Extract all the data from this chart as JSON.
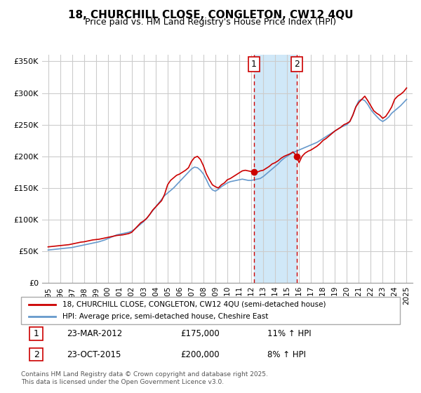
{
  "title": "18, CHURCHILL CLOSE, CONGLETON, CW12 4QU",
  "subtitle": "Price paid vs. HM Land Registry's House Price Index (HPI)",
  "legend_line1": "18, CHURCHILL CLOSE, CONGLETON, CW12 4QU (semi-detached house)",
  "legend_line2": "HPI: Average price, semi-detached house, Cheshire East",
  "footnote": "Contains HM Land Registry data © Crown copyright and database right 2025.\nThis data is licensed under the Open Government Licence v3.0.",
  "annotation1_label": "1",
  "annotation1_date": "23-MAR-2012",
  "annotation1_price": "£175,000",
  "annotation1_hpi": "11% ↑ HPI",
  "annotation2_label": "2",
  "annotation2_date": "23-OCT-2015",
  "annotation2_price": "£200,000",
  "annotation2_hpi": "8% ↑ HPI",
  "marker1_x": 2012.23,
  "marker1_y": 175000,
  "marker2_x": 2015.81,
  "marker2_y": 200000,
  "shaded_x1": 2012.23,
  "shaded_x2": 2015.81,
  "vline1_x": 2012.23,
  "vline2_x": 2015.81,
  "red_line_color": "#cc0000",
  "blue_line_color": "#6699cc",
  "shaded_color": "#d0e8f8",
  "grid_color": "#cccccc",
  "background_color": "#ffffff",
  "ylim": [
    0,
    360000
  ],
  "xlim_start": 1994.5,
  "xlim_end": 2025.5,
  "yticks": [
    0,
    50000,
    100000,
    150000,
    200000,
    250000,
    300000,
    350000
  ],
  "ytick_labels": [
    "£0",
    "£50K",
    "£100K",
    "£150K",
    "£200K",
    "£250K",
    "£300K",
    "£350K"
  ],
  "xticks": [
    1995,
    1996,
    1997,
    1998,
    1999,
    2000,
    2001,
    2002,
    2003,
    2004,
    2005,
    2006,
    2007,
    2008,
    2009,
    2010,
    2011,
    2012,
    2013,
    2014,
    2015,
    2016,
    2017,
    2018,
    2019,
    2020,
    2021,
    2022,
    2023,
    2024,
    2025
  ],
  "red_x": [
    1995.0,
    1995.25,
    1995.5,
    1995.75,
    1996.0,
    1996.25,
    1996.5,
    1996.75,
    1997.0,
    1997.25,
    1997.5,
    1997.75,
    1998.0,
    1998.25,
    1998.5,
    1998.75,
    1999.0,
    1999.25,
    1999.5,
    1999.75,
    2000.0,
    2000.25,
    2000.5,
    2000.75,
    2001.0,
    2001.25,
    2001.5,
    2001.75,
    2002.0,
    2002.25,
    2002.5,
    2002.75,
    2003.0,
    2003.25,
    2003.5,
    2003.75,
    2004.0,
    2004.25,
    2004.5,
    2004.75,
    2005.0,
    2005.25,
    2005.5,
    2005.75,
    2006.0,
    2006.25,
    2006.5,
    2006.75,
    2007.0,
    2007.25,
    2007.5,
    2007.75,
    2008.0,
    2008.25,
    2008.5,
    2008.75,
    2009.0,
    2009.25,
    2009.5,
    2009.75,
    2010.0,
    2010.25,
    2010.5,
    2010.75,
    2011.0,
    2011.25,
    2011.5,
    2011.75,
    2012.0,
    2012.23,
    2012.5,
    2012.75,
    2013.0,
    2013.25,
    2013.5,
    2013.75,
    2014.0,
    2014.25,
    2014.5,
    2014.75,
    2015.0,
    2015.25,
    2015.5,
    2015.81,
    2016.0,
    2016.25,
    2016.5,
    2016.75,
    2017.0,
    2017.25,
    2017.5,
    2017.75,
    2018.0,
    2018.25,
    2018.5,
    2018.75,
    2019.0,
    2019.25,
    2019.5,
    2019.75,
    2020.0,
    2020.25,
    2020.5,
    2020.75,
    2021.0,
    2021.25,
    2021.5,
    2021.75,
    2022.0,
    2022.25,
    2022.5,
    2022.75,
    2023.0,
    2023.25,
    2023.5,
    2023.75,
    2024.0,
    2024.25,
    2024.5,
    2024.75,
    2025.0
  ],
  "red_y": [
    57000,
    57500,
    58000,
    58500,
    59000,
    59500,
    60000,
    60500,
    61500,
    62500,
    63500,
    64500,
    65000,
    66000,
    67000,
    68000,
    68500,
    69000,
    70000,
    71000,
    72000,
    73000,
    74000,
    75000,
    75500,
    76000,
    77000,
    78000,
    80000,
    85000,
    90000,
    95000,
    98000,
    102000,
    108000,
    115000,
    120000,
    125000,
    130000,
    140000,
    155000,
    162000,
    166000,
    170000,
    172000,
    175000,
    178000,
    182000,
    192000,
    198000,
    200000,
    195000,
    185000,
    172000,
    163000,
    155000,
    152000,
    150000,
    155000,
    158000,
    163000,
    165000,
    168000,
    171000,
    174000,
    177000,
    178000,
    177000,
    176000,
    175000,
    175000,
    177000,
    178000,
    181000,
    184000,
    188000,
    190000,
    193000,
    197000,
    200000,
    202000,
    204000,
    207000,
    200000,
    190000,
    200000,
    205000,
    208000,
    210000,
    213000,
    216000,
    220000,
    225000,
    228000,
    232000,
    236000,
    240000,
    243000,
    246000,
    250000,
    252000,
    255000,
    265000,
    278000,
    285000,
    290000,
    295000,
    288000,
    280000,
    272000,
    268000,
    265000,
    260000,
    263000,
    270000,
    278000,
    290000,
    295000,
    298000,
    302000,
    308000
  ],
  "blue_x": [
    1995.0,
    1995.25,
    1995.5,
    1995.75,
    1996.0,
    1996.25,
    1996.5,
    1996.75,
    1997.0,
    1997.25,
    1997.5,
    1997.75,
    1998.0,
    1998.25,
    1998.5,
    1998.75,
    1999.0,
    1999.25,
    1999.5,
    1999.75,
    2000.0,
    2000.25,
    2000.5,
    2000.75,
    2001.0,
    2001.25,
    2001.5,
    2001.75,
    2002.0,
    2002.25,
    2002.5,
    2002.75,
    2003.0,
    2003.25,
    2003.5,
    2003.75,
    2004.0,
    2004.25,
    2004.5,
    2004.75,
    2005.0,
    2005.25,
    2005.5,
    2005.75,
    2006.0,
    2006.25,
    2006.5,
    2006.75,
    2007.0,
    2007.25,
    2007.5,
    2007.75,
    2008.0,
    2008.25,
    2008.5,
    2008.75,
    2009.0,
    2009.25,
    2009.5,
    2009.75,
    2010.0,
    2010.25,
    2010.5,
    2010.75,
    2011.0,
    2011.25,
    2011.5,
    2011.75,
    2012.0,
    2012.25,
    2012.5,
    2012.75,
    2013.0,
    2013.25,
    2013.5,
    2013.75,
    2014.0,
    2014.25,
    2014.5,
    2014.75,
    2015.0,
    2015.25,
    2015.5,
    2015.75,
    2016.0,
    2016.25,
    2016.5,
    2016.75,
    2017.0,
    2017.25,
    2017.5,
    2017.75,
    2018.0,
    2018.25,
    2018.5,
    2018.75,
    2019.0,
    2019.25,
    2019.5,
    2019.75,
    2020.0,
    2020.25,
    2020.5,
    2020.75,
    2021.0,
    2021.25,
    2021.5,
    2021.75,
    2022.0,
    2022.25,
    2022.5,
    2022.75,
    2023.0,
    2023.25,
    2023.5,
    2023.75,
    2024.0,
    2024.25,
    2024.5,
    2024.75,
    2025.0
  ],
  "blue_y": [
    52000,
    52500,
    53000,
    53500,
    54000,
    54500,
    55000,
    55500,
    56000,
    57000,
    58000,
    59000,
    60000,
    61000,
    62000,
    63000,
    64000,
    65000,
    66500,
    68000,
    70000,
    72000,
    74000,
    76000,
    77000,
    78000,
    79000,
    80000,
    82000,
    85000,
    89000,
    93000,
    97000,
    102000,
    108000,
    114000,
    120000,
    126000,
    132000,
    138000,
    142000,
    146000,
    150000,
    155000,
    160000,
    165000,
    170000,
    175000,
    180000,
    183000,
    182000,
    178000,
    172000,
    163000,
    153000,
    147000,
    145000,
    148000,
    152000,
    155000,
    158000,
    160000,
    161000,
    162000,
    163000,
    164000,
    163000,
    162000,
    162000,
    163000,
    164000,
    165000,
    168000,
    172000,
    176000,
    180000,
    184000,
    188000,
    193000,
    197000,
    200000,
    203000,
    206000,
    208000,
    210000,
    212000,
    214000,
    216000,
    218000,
    220000,
    222000,
    225000,
    228000,
    231000,
    234000,
    237000,
    240000,
    243000,
    246000,
    248000,
    250000,
    255000,
    265000,
    278000,
    288000,
    290000,
    288000,
    282000,
    274000,
    268000,
    263000,
    258000,
    255000,
    258000,
    262000,
    268000,
    272000,
    276000,
    280000,
    285000,
    290000
  ]
}
